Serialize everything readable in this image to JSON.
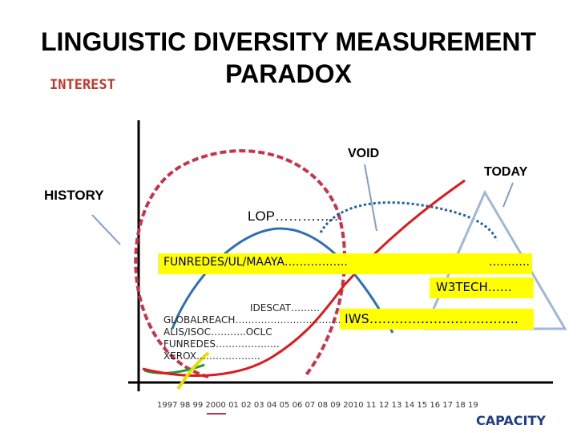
{
  "title_line1": "LINGUISTIC DIVERSITY MEASUREMENT",
  "title_line2": "PARADOX",
  "labels": {
    "interest": "INTEREST",
    "void": "VOID",
    "today": "TODAY",
    "history": "HISTORY",
    "lop": "LOP……………",
    "funredes": "FUNREDES/UL/MAAYA……………..",
    "funredes_dots": "………..",
    "w3tech": "W3TECH……",
    "idescat": "IDESCAT………",
    "globalreach": "GLOBALREACH……………………………..",
    "alis": "ALIS/ISOC………..OCLC",
    "funredes2": "FUNREDES………………..",
    "xerox": "XEROX………………..",
    "iws": "IWS……………………………..",
    "years": "1997 98 99 2000 01 02 03 04 05 06 07 08 09 2010 11 12 13 14 15 16 17 18 19",
    "capacity": "CAPACITY"
  },
  "colors": {
    "highlight": "#ffff00",
    "history_circle": "#c8324a",
    "void_circle": "#1f5fa8",
    "today_triangle": "#9fb7d9",
    "red_curve": "#e0191c",
    "blue_curve": "#2f6fb3",
    "green_curve": "#1a9a3a",
    "yellow_curve": "#e8e000",
    "pointer_lines": "#7f9fc9",
    "interest_label": "#c0392b",
    "capacity_label": "#1f3c88"
  }
}
